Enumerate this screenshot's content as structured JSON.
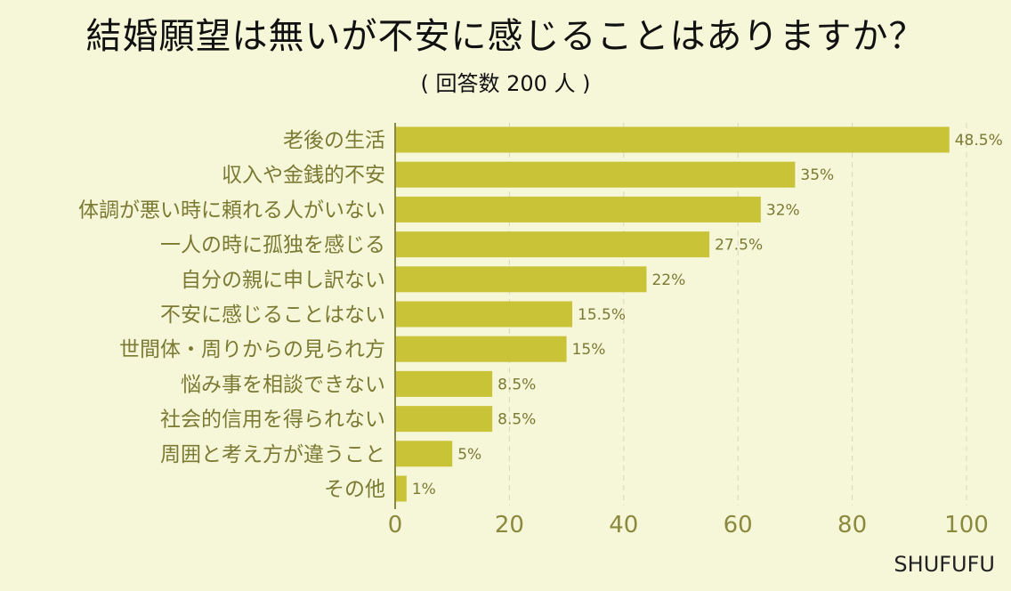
{
  "chart_data": {
    "type": "bar",
    "orientation": "horizontal",
    "title": "結婚願望は無いが不安に感じることはありますか？",
    "subtitle": "( 回答数 200 人 )",
    "categories": [
      "老後の生活",
      "収入や金銭的不安",
      "体調が悪い時に頼れる人がいない",
      "一人の時に孤独を感じる",
      "自分の親に申し訳ない",
      "不安に感じることはない",
      "世間体・周りからの見られ方",
      "悩み事を相談できない",
      "社会的信用を得られない",
      "周囲と考え方が違うこと",
      "その他"
    ],
    "values": [
      97,
      70,
      64,
      55,
      44,
      31,
      30,
      17,
      17,
      10,
      2
    ],
    "value_labels": [
      "48.5%",
      "35%",
      "32%",
      "27.5%",
      "22%",
      "15.5%",
      "15%",
      "8.5%",
      "8.5%",
      "5%",
      "1%"
    ],
    "xlim": [
      0,
      100
    ],
    "xticks": [
      "0",
      "20",
      "40",
      "60",
      "80",
      "100"
    ],
    "grid": "vertical dashed",
    "bar_color": "#c9c437",
    "background": "#f6f6d9"
  },
  "brand": "SHUFUFU"
}
